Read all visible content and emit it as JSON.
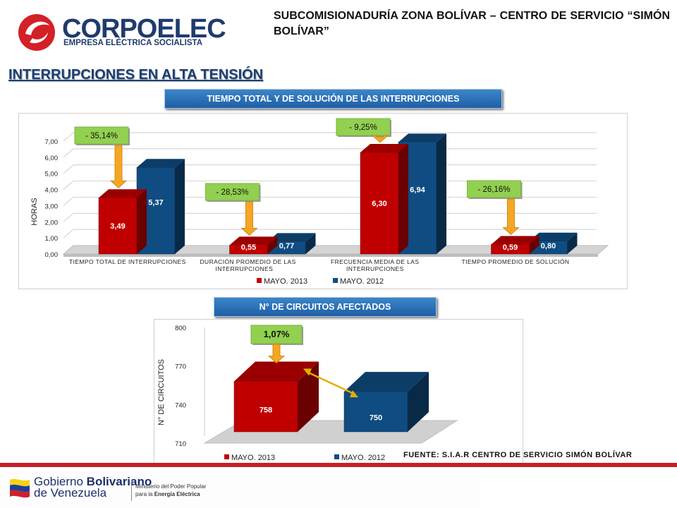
{
  "header": {
    "subtitle": "SUBCOMISIONADURÍA ZONA BOLÍVAR – CENTRO DE SERVICIO “SIMÓN BOLÍVAR”",
    "logo_name": "CORPOELEC",
    "logo_tagline": "EMPRESA ELÉCTRICA SOCIALISTA"
  },
  "page_title": "INTERRUPCIONES EN ALTA TENSIÓN",
  "source": "FUENTE: S.I.A.R CENTRO DE SERVICIO SIMÓN BOLÍVAR",
  "footer": {
    "gov_line1": "Gobierno ",
    "gov_line1_bold": "Bolivariano",
    "gov_line2": "de Venezuela",
    "ministry_line1": "Ministerio del Poder Popular",
    "ministry_line2": "para la ",
    "ministry_line2_bold": "Energía Eléctrica"
  },
  "colors": {
    "series_2013": "#c00000",
    "series_2012": "#0f4c81",
    "callout_green": "#92d050",
    "arrow_orange": "#f5a623",
    "banner_blue": "#2c6fb7"
  },
  "chart_data": [
    {
      "type": "bar",
      "title": "TIEMPO TOTAL Y DE SOLUCIÓN DE LAS INTERRUPCIONES",
      "ylabel": "HORAS",
      "ylim": [
        0,
        7
      ],
      "yticks": [
        "0,00",
        "1,00",
        "2,00",
        "3,00",
        "4,00",
        "5,00",
        "6,00",
        "7,00"
      ],
      "categories": [
        "TIEMPO TOTAL DE INTERRUPCIONES",
        "DURACIÓN PROMEDIO DE LAS INTERRUPCIONES",
        "FRECUENCIA MEDIA DE LAS INTERRUPCIONES",
        "TIEMPO PROMEDIO DE SOLUCIÓN"
      ],
      "series": [
        {
          "name": "MAYO. 2013",
          "values": [
            3.49,
            0.55,
            6.3,
            0.59
          ],
          "labels": [
            "3,49",
            "0,55",
            "6,30",
            "0,59"
          ]
        },
        {
          "name": "MAYO. 2012",
          "values": [
            5.37,
            0.77,
            6.94,
            0.8
          ],
          "labels": [
            "5,37",
            "0,77",
            "6,94",
            "0,80"
          ]
        }
      ],
      "annotations": [
        "- 35,14%",
        "- 28,53%",
        "- 9,25%",
        "- 26,16%"
      ],
      "legend": "bottom",
      "grid": true
    },
    {
      "type": "bar",
      "title": "N° DE CIRCUITOS AFECTADOS",
      "ylabel": "N° DE CIRCUITOS",
      "ylim": [
        710,
        800
      ],
      "yticks": [
        "710",
        "740",
        "770",
        "800"
      ],
      "categories": [
        ""
      ],
      "series": [
        {
          "name": "MAYO. 2013",
          "values": [
            758
          ],
          "labels": [
            "758"
          ]
        },
        {
          "name": "MAYO. 2012",
          "values": [
            750
          ],
          "labels": [
            "750"
          ]
        }
      ],
      "annotations": [
        "1,07%"
      ],
      "legend": "bottom",
      "grid": false
    }
  ]
}
